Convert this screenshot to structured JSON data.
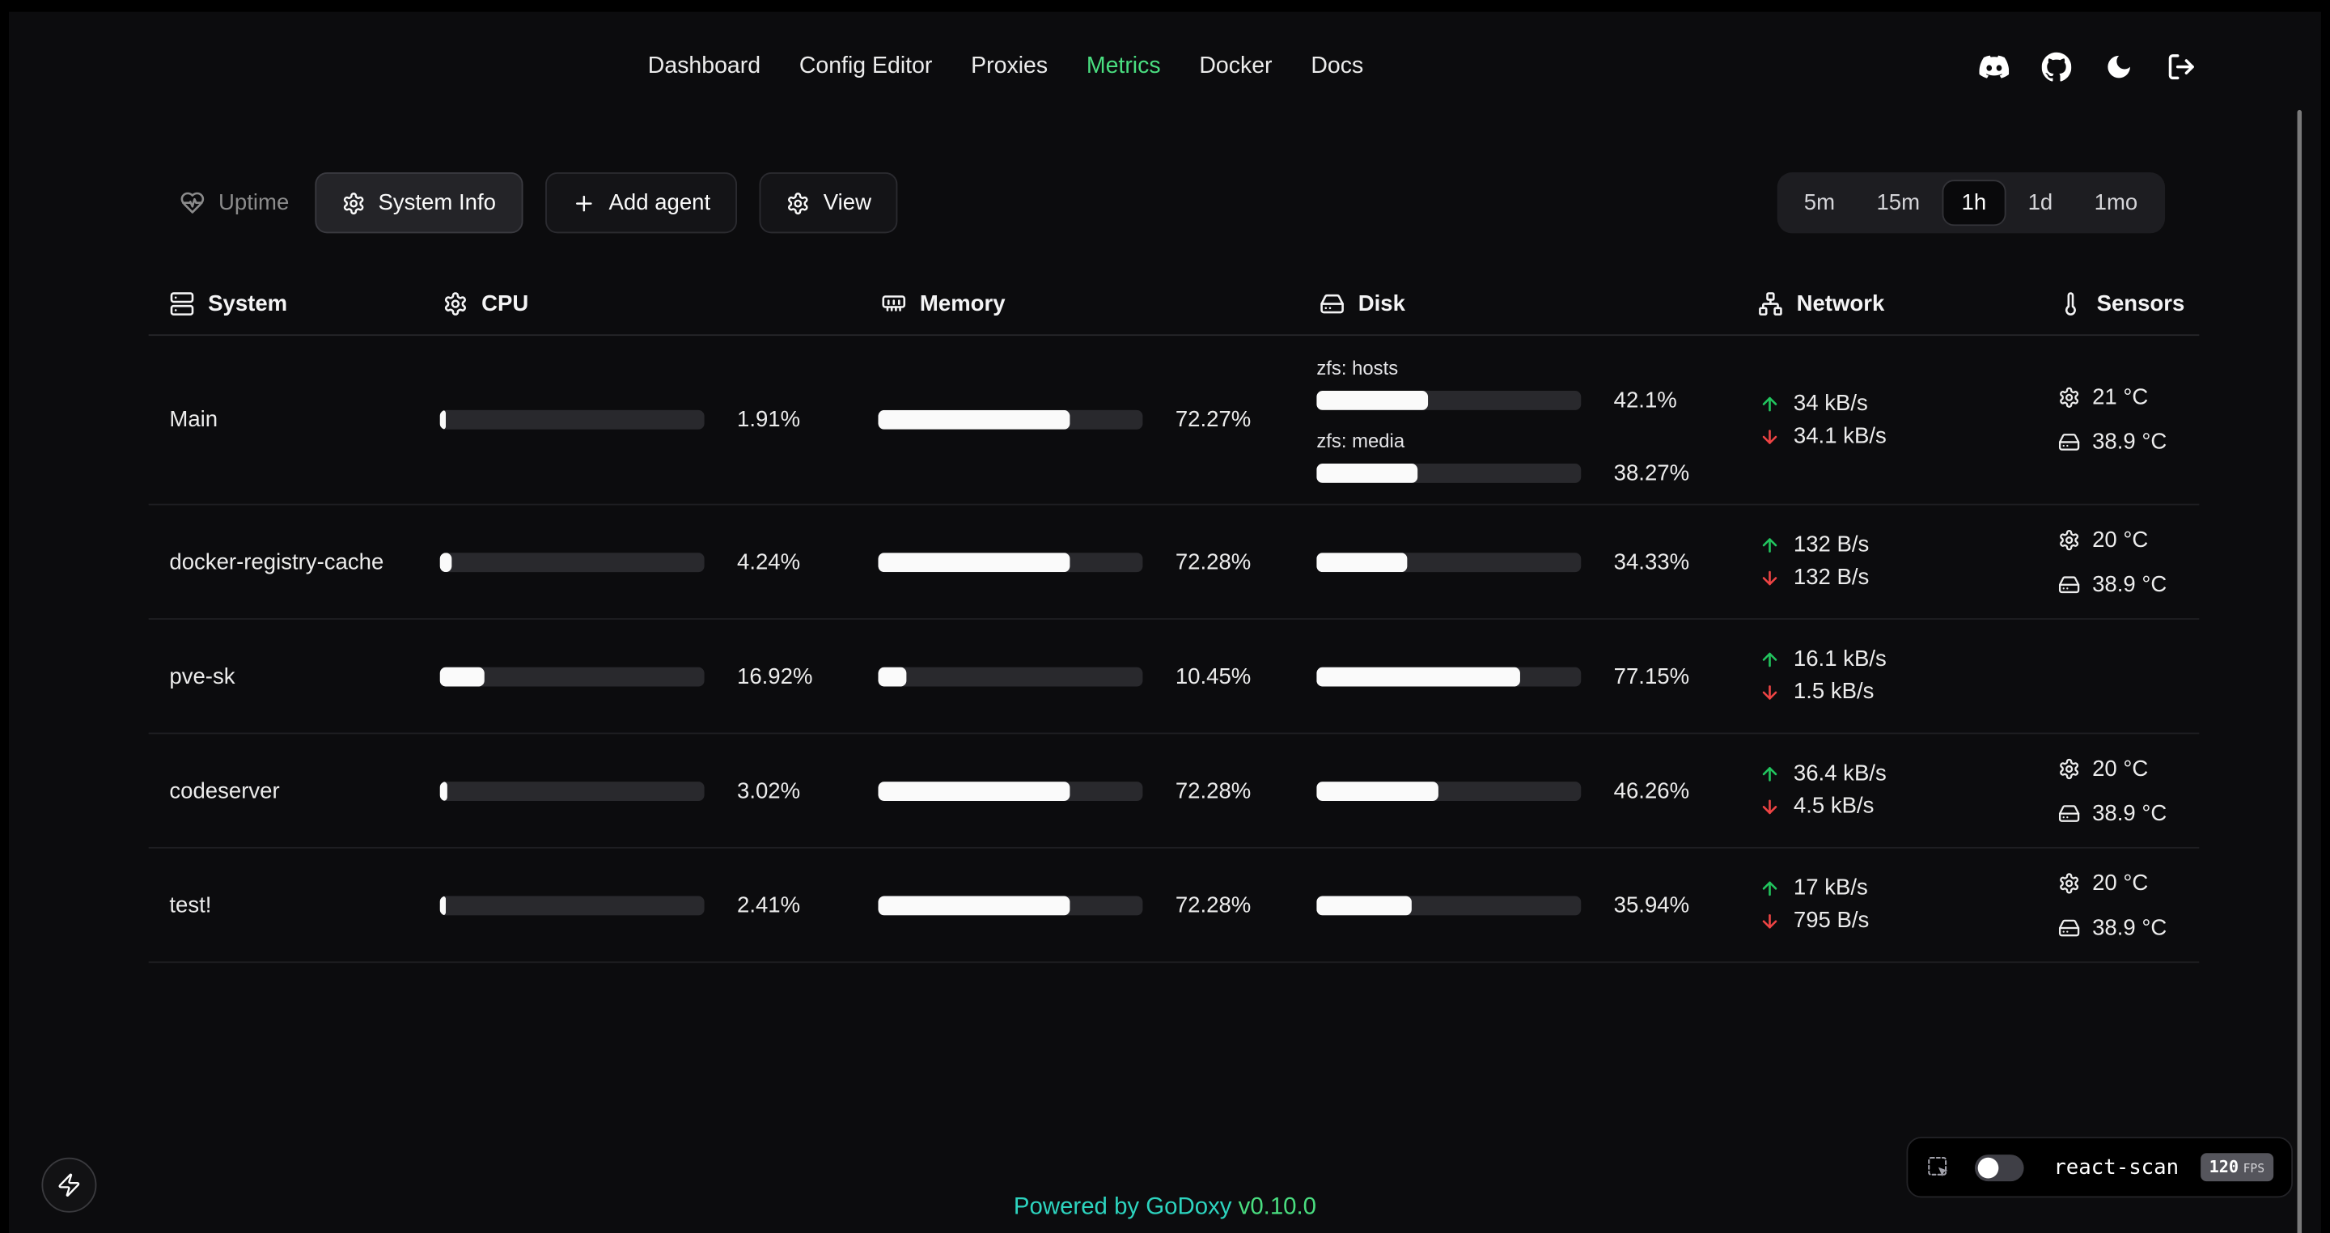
{
  "nav": {
    "items": [
      {
        "label": "Dashboard",
        "active": false
      },
      {
        "label": "Config Editor",
        "active": false
      },
      {
        "label": "Proxies",
        "active": false
      },
      {
        "label": "Metrics",
        "active": true
      },
      {
        "label": "Docker",
        "active": false
      },
      {
        "label": "Docs",
        "active": false
      }
    ],
    "icons": [
      {
        "name": "discord"
      },
      {
        "name": "github"
      },
      {
        "name": "dark-mode-moon"
      },
      {
        "name": "logout"
      }
    ]
  },
  "toolbar": {
    "uptime_label": "Uptime",
    "system_info_label": "System Info",
    "add_agent_label": "Add agent",
    "view_label": "View",
    "time_ranges": [
      {
        "label": "5m",
        "active": false
      },
      {
        "label": "15m",
        "active": false
      },
      {
        "label": "1h",
        "active": true
      },
      {
        "label": "1d",
        "active": false
      },
      {
        "label": "1mo",
        "active": false
      }
    ]
  },
  "table": {
    "headers": {
      "system": {
        "icon": "server",
        "label": "System"
      },
      "cpu": {
        "icon": "gear",
        "label": "CPU"
      },
      "memory": {
        "icon": "memory-stick",
        "label": "Memory"
      },
      "disk": {
        "icon": "hard-drive",
        "label": "Disk"
      },
      "network": {
        "icon": "network",
        "label": "Network"
      },
      "sensors": {
        "icon": "thermometer",
        "label": "Sensors"
      }
    },
    "rows": [
      {
        "name": "Main",
        "cpu_pct": 1.91,
        "cpu": "1.91%",
        "mem_pct": 72.27,
        "mem": "72.27%",
        "disks": [
          {
            "label": "zfs: hosts",
            "pct": 42.1,
            "value": "42.1%"
          },
          {
            "label": "zfs: media",
            "pct": 38.27,
            "value": "38.27%"
          }
        ],
        "net_up": "34 kB/s",
        "net_down": "34.1 kB/s",
        "sensors": [
          {
            "icon": "cpu-temp",
            "value": "21 °C"
          },
          {
            "icon": "disk-temp",
            "value": "38.9 °C"
          }
        ]
      },
      {
        "name": "docker-registry-cache",
        "cpu_pct": 4.24,
        "cpu": "4.24%",
        "mem_pct": 72.28,
        "mem": "72.28%",
        "disk_pct": 34.33,
        "disk": "34.33%",
        "net_up": "132 B/s",
        "net_down": "132 B/s",
        "sensors": [
          {
            "icon": "cpu-temp",
            "value": "20 °C"
          },
          {
            "icon": "disk-temp",
            "value": "38.9 °C"
          }
        ]
      },
      {
        "name": "pve-sk",
        "cpu_pct": 16.92,
        "cpu": "16.92%",
        "mem_pct": 10.45,
        "mem": "10.45%",
        "disk_pct": 77.15,
        "disk": "77.15%",
        "net_up": "16.1 kB/s",
        "net_down": "1.5 kB/s",
        "sensors": []
      },
      {
        "name": "codeserver",
        "cpu_pct": 3.02,
        "cpu": "3.02%",
        "mem_pct": 72.28,
        "mem": "72.28%",
        "disk_pct": 46.26,
        "disk": "46.26%",
        "net_up": "36.4 kB/s",
        "net_down": "4.5 kB/s",
        "sensors": [
          {
            "icon": "cpu-temp",
            "value": "20 °C"
          },
          {
            "icon": "disk-temp",
            "value": "38.9 °C"
          }
        ]
      },
      {
        "name": "test!",
        "cpu_pct": 2.41,
        "cpu": "2.41%",
        "mem_pct": 72.28,
        "mem": "72.28%",
        "disk_pct": 35.94,
        "disk": "35.94%",
        "net_up": "17 kB/s",
        "net_down": "795 B/s",
        "sensors": [
          {
            "icon": "cpu-temp",
            "value": "20 °C"
          },
          {
            "icon": "disk-temp",
            "value": "38.9 °C"
          }
        ]
      }
    ]
  },
  "footer": {
    "powered_by": "Powered by",
    "brand": "GoDoxy",
    "version": "v0.10.0"
  },
  "react_scan": {
    "label": "react-scan",
    "fps": "120",
    "fps_unit": "FPS",
    "toggle_on": false
  },
  "colors": {
    "accent_green": "#4ade80",
    "net_up": "#22c55e",
    "net_down": "#ef4444",
    "teal": "#2dd4bf",
    "bar_fill": "#fafafa",
    "bar_track": "#29292d"
  }
}
